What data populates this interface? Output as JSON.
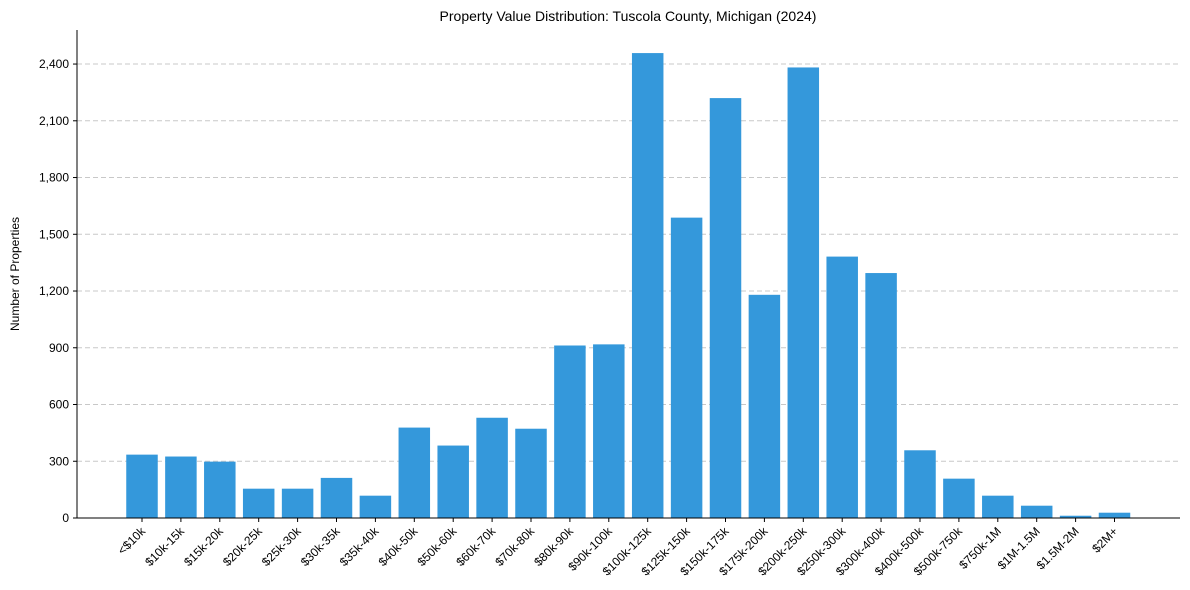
{
  "chart_data": {
    "type": "bar",
    "title": "Property Value Distribution: Tuscola County, Michigan (2024)",
    "xlabel": "",
    "ylabel": "Number of Properties",
    "ylim": [
      0,
      2580
    ],
    "yticks": [
      0,
      300,
      600,
      900,
      1200,
      1500,
      1800,
      2100,
      2400
    ],
    "ytick_labels": [
      "0",
      "300",
      "600",
      "900",
      "1,200",
      "1,500",
      "1,800",
      "2,100",
      "2,400"
    ],
    "grid": "y-dashed",
    "bar_color": "#3498db",
    "categories": [
      "<$10k",
      "$10k-15k",
      "$15k-20k",
      "$20k-25k",
      "$25k-30k",
      "$30k-35k",
      "$35k-40k",
      "$40k-50k",
      "$50k-60k",
      "$60k-70k",
      "$70k-80k",
      "$80k-90k",
      "$90k-100k",
      "$100k-125k",
      "$125k-150k",
      "$150k-175k",
      "$175k-200k",
      "$200k-250k",
      "$250k-300k",
      "$300k-400k",
      "$400k-500k",
      "$500k-750k",
      "$750k-1M",
      "$1M-1.5M",
      "$1.5M-2M",
      "$2M+"
    ],
    "values": [
      335,
      325,
      298,
      155,
      155,
      212,
      118,
      478,
      383,
      530,
      472,
      912,
      918,
      2458,
      1588,
      2220,
      1180,
      2382,
      1382,
      1295,
      358,
      208,
      118,
      65,
      12,
      28
    ]
  }
}
